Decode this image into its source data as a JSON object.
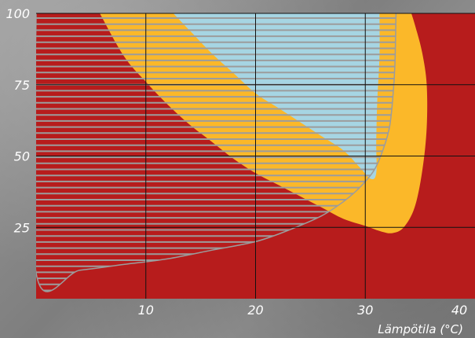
{
  "chart_data": {
    "type": "area",
    "title": "",
    "xlabel": "Lämpötila (°C)",
    "ylabel": "",
    "xlim": [
      0,
      40
    ],
    "ylim": [
      0,
      100
    ],
    "x_ticks": [
      10,
      20,
      30,
      40
    ],
    "y_ticks": [
      25,
      50,
      75,
      100
    ],
    "grid": true,
    "colors": {
      "background_zone": "#b71c1c",
      "middle_zone": "#fbb829",
      "optimal_zone": "#a6d5e3",
      "hatch": "#9c9c9c",
      "grid": "#111111"
    },
    "regions": [
      {
        "color": "#fbb829",
        "boundary": [
          {
            "x": 5.8,
            "y": 100
          },
          {
            "x": 8,
            "y": 85
          },
          {
            "x": 10,
            "y": 76
          },
          {
            "x": 12,
            "y": 68
          },
          {
            "x": 14,
            "y": 61
          },
          {
            "x": 16,
            "y": 55
          },
          {
            "x": 18,
            "y": 49
          },
          {
            "x": 20,
            "y": 44
          },
          {
            "x": 22,
            "y": 40
          },
          {
            "x": 24,
            "y": 36
          },
          {
            "x": 26,
            "y": 32
          },
          {
            "x": 28,
            "y": 28
          },
          {
            "x": 30,
            "y": 25.5
          },
          {
            "x": 31.5,
            "y": 23.5
          },
          {
            "x": 32.5,
            "y": 23
          },
          {
            "x": 33.5,
            "y": 25
          },
          {
            "x": 34.5,
            "y": 32
          },
          {
            "x": 35.2,
            "y": 45
          },
          {
            "x": 35.6,
            "y": 60
          },
          {
            "x": 35.6,
            "y": 75
          },
          {
            "x": 35.2,
            "y": 86
          },
          {
            "x": 34.6,
            "y": 95
          },
          {
            "x": 34.2,
            "y": 100
          }
        ]
      },
      {
        "color": "#a6d5e3",
        "boundary": [
          {
            "x": 12.5,
            "y": 100
          },
          {
            "x": 14,
            "y": 94
          },
          {
            "x": 16,
            "y": 86
          },
          {
            "x": 18,
            "y": 79
          },
          {
            "x": 20,
            "y": 72
          },
          {
            "x": 22,
            "y": 67
          },
          {
            "x": 24,
            "y": 62
          },
          {
            "x": 26,
            "y": 57
          },
          {
            "x": 28,
            "y": 52
          },
          {
            "x": 29.5,
            "y": 46
          },
          {
            "x": 30.5,
            "y": 42
          },
          {
            "x": 31,
            "y": 44
          },
          {
            "x": 31,
            "y": 55
          },
          {
            "x": 31.1,
            "y": 70
          },
          {
            "x": 31.3,
            "y": 85
          },
          {
            "x": 31.3,
            "y": 100
          }
        ]
      }
    ],
    "hatched_region": {
      "color": "#9c9c9c",
      "boundary": [
        {
          "x": 0,
          "y": 100
        },
        {
          "x": 0,
          "y": 9
        },
        {
          "x": 4,
          "y": 10
        },
        {
          "x": 8,
          "y": 12
        },
        {
          "x": 12,
          "y": 14
        },
        {
          "x": 16,
          "y": 17
        },
        {
          "x": 20,
          "y": 20
        },
        {
          "x": 23,
          "y": 24
        },
        {
          "x": 26,
          "y": 29
        },
        {
          "x": 28,
          "y": 34
        },
        {
          "x": 29.5,
          "y": 39
        },
        {
          "x": 30.8,
          "y": 45
        },
        {
          "x": 31.6,
          "y": 52
        },
        {
          "x": 32.2,
          "y": 60
        },
        {
          "x": 32.5,
          "y": 70
        },
        {
          "x": 32.7,
          "y": 82
        },
        {
          "x": 32.8,
          "y": 100
        }
      ]
    }
  }
}
